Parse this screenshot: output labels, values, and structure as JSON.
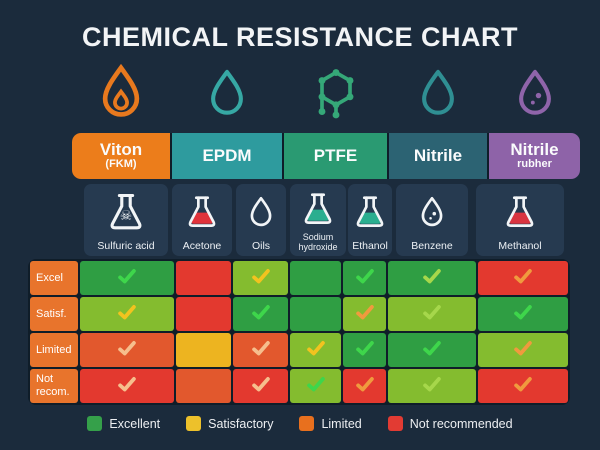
{
  "title": "CHEMICAL RESISTANCE CHART",
  "materials": [
    {
      "name": "Viton",
      "sub": "(FKM)",
      "color": "#EC7D1B",
      "icon": "flame-drop",
      "icon_color": "#E8791E"
    },
    {
      "name": "EPDM",
      "sub": "",
      "color": "#2E9B9E",
      "icon": "droplet",
      "icon_color": "#36A8A4"
    },
    {
      "name": "PTFE",
      "sub": "",
      "color": "#2A9A72",
      "icon": "molecule",
      "icon_color": "#35A878"
    },
    {
      "name": "Nitrile",
      "sub": "",
      "color": "#2C6373",
      "icon": "droplet",
      "icon_color": "#2F8F93"
    },
    {
      "name": "Nitrile",
      "sub": "rubher",
      "color": "#8E63A8",
      "icon": "droplet-dots",
      "icon_color": "#8F64AA"
    }
  ],
  "chemicals": [
    {
      "icon": "flask-skull",
      "liquid": ""
    },
    {
      "icon": "flask",
      "liquid": "#E0333B"
    },
    {
      "icon": "droplet",
      "liquid": ""
    },
    {
      "icon": "flask",
      "liquid": "#2AAE8F"
    },
    {
      "icon": "flask",
      "liquid": "#2AAE8F"
    },
    {
      "icon": "droplet-dots",
      "liquid": ""
    },
    {
      "icon": "flask",
      "liquid": "#D93440"
    }
  ],
  "row_label_color": "#E8742C",
  "chart_data": {
    "type": "heatmap",
    "title": "CHEMICAL RESISTANCE CHART",
    "columns": [
      "Sulfuric acid",
      "Acetone",
      "Oils",
      "Sodium hydroxide",
      "Ethanol",
      "Benzene",
      "Methanol"
    ],
    "row_labels": [
      "Excel",
      "Satisf.",
      "Limited",
      "Not recom."
    ],
    "fill_colors": {
      "green": "#2F9E43",
      "lightgreen": "#84BC2F",
      "red": "#E3392F",
      "orangered": "#E2582D",
      "yellow": "#EDB420"
    },
    "check_colors": {
      "green": "#3ED64B",
      "lightgreen": "#A6D74B",
      "yellow": "#F2C31F",
      "orange": "#F09A3E",
      "pale": "#F6BE8D"
    },
    "cells": [
      [
        {
          "fill": "green",
          "check": "green"
        },
        {
          "fill": "red",
          "check": "none"
        },
        {
          "fill": "lightgreen",
          "check": "yellow"
        },
        {
          "fill": "green",
          "check": "none"
        },
        {
          "fill": "green",
          "check": "green"
        },
        {
          "fill": "green",
          "check": "lightgreen"
        },
        {
          "fill": "red",
          "check": "orange"
        }
      ],
      [
        {
          "fill": "lightgreen",
          "check": "yellow"
        },
        {
          "fill": "red",
          "check": "none"
        },
        {
          "fill": "green",
          "check": "green"
        },
        {
          "fill": "green",
          "check": "none"
        },
        {
          "fill": "lightgreen",
          "check": "orange"
        },
        {
          "fill": "lightgreen",
          "check": "lightgreen"
        },
        {
          "fill": "green",
          "check": "green"
        }
      ],
      [
        {
          "fill": "orangered",
          "check": "pale"
        },
        {
          "fill": "yellow",
          "check": "none"
        },
        {
          "fill": "orangered",
          "check": "pale"
        },
        {
          "fill": "lightgreen",
          "check": "yellow"
        },
        {
          "fill": "green",
          "check": "green"
        },
        {
          "fill": "green",
          "check": "green"
        },
        {
          "fill": "lightgreen",
          "check": "orange"
        }
      ],
      [
        {
          "fill": "red",
          "check": "pale"
        },
        {
          "fill": "orangered",
          "check": "none"
        },
        {
          "fill": "red",
          "check": "pale"
        },
        {
          "fill": "lightgreen",
          "check": "green"
        },
        {
          "fill": "red",
          "check": "orange"
        },
        {
          "fill": "lightgreen",
          "check": "lightgreen"
        },
        {
          "fill": "red",
          "check": "orange"
        }
      ]
    ],
    "legend": [
      {
        "label": "Excellent",
        "color": "#35A04A"
      },
      {
        "label": "Satisfactory",
        "color": "#EDC12B"
      },
      {
        "label": "Limited",
        "color": "#E8701E"
      },
      {
        "label": "Not recommended",
        "color": "#E23B33"
      }
    ],
    "legend_position": "bottom"
  }
}
